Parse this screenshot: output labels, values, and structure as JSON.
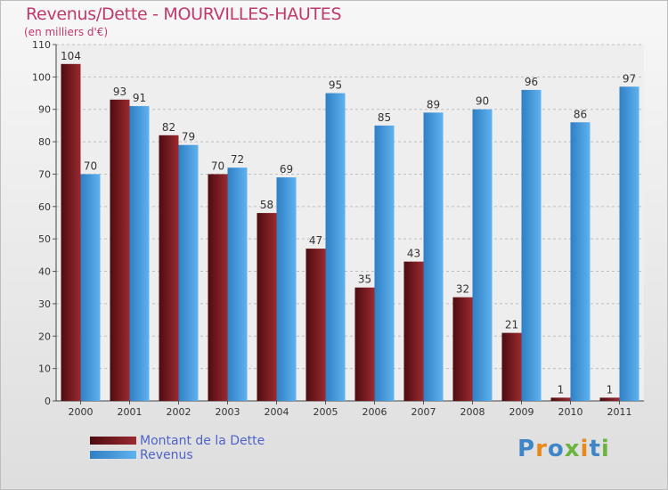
{
  "title": "Revenus/Dette - MOURVILLES-HAUTES",
  "subtitle": "(en milliers d'€)",
  "logo": {
    "text": "Proxiti",
    "letter_colors": [
      "#3f86c8",
      "#e8891c",
      "#3f86c8",
      "#6cb33f",
      "#e8891c",
      "#3f86c8",
      "#6cb33f"
    ]
  },
  "chart_data": {
    "type": "bar",
    "categories": [
      "2000",
      "2001",
      "2002",
      "2003",
      "2004",
      "2005",
      "2006",
      "2007",
      "2008",
      "2009",
      "2010",
      "2011"
    ],
    "series": [
      {
        "name": "Montant de la Dette",
        "color": "#7a1a1f",
        "values": [
          104,
          93,
          82,
          70,
          58,
          47,
          35,
          43,
          32,
          21,
          1,
          1
        ]
      },
      {
        "name": "Revenus",
        "color": "#4a9fe0",
        "values": [
          70,
          91,
          79,
          72,
          69,
          95,
          85,
          89,
          90,
          96,
          86,
          97
        ]
      }
    ],
    "ylim": [
      0,
      110
    ],
    "yticks": [
      0,
      10,
      20,
      30,
      40,
      50,
      60,
      70,
      80,
      90,
      100,
      110
    ],
    "grid": true,
    "legend_position": "bottom-left"
  }
}
